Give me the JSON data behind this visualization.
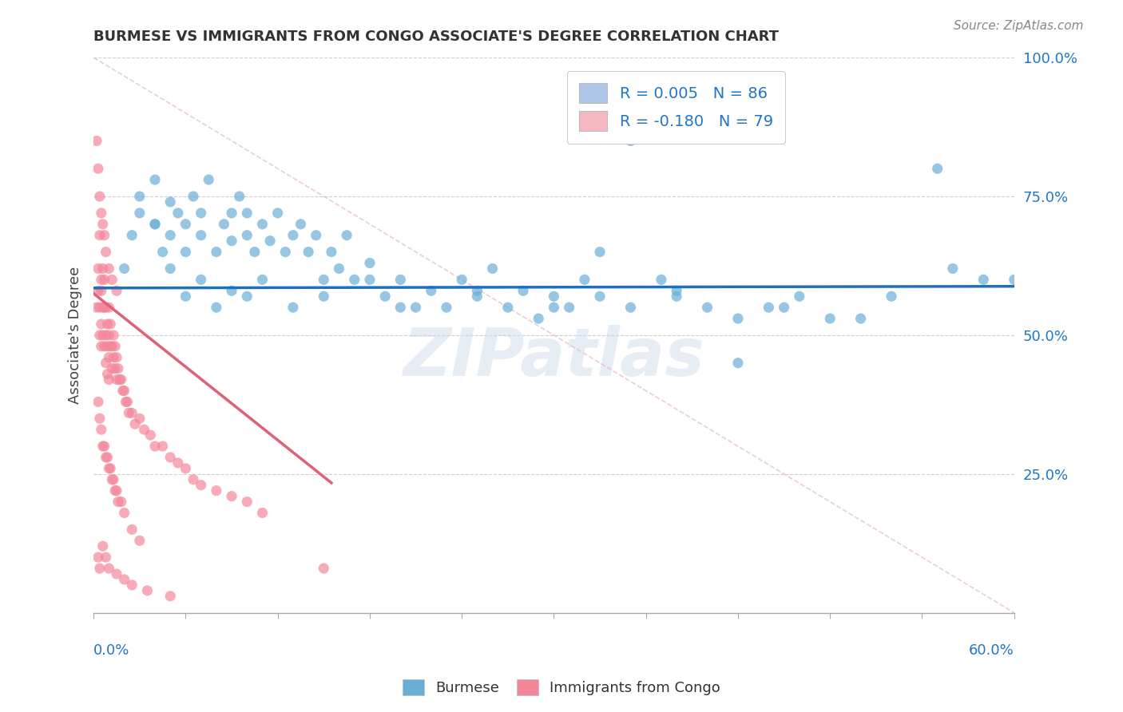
{
  "title": "BURMESE VS IMMIGRANTS FROM CONGO ASSOCIATE'S DEGREE CORRELATION CHART",
  "source": "Source: ZipAtlas.com",
  "ylabel": "Associate's Degree",
  "right_yticklabels": [
    "25.0%",
    "50.0%",
    "75.0%",
    "100.0%"
  ],
  "right_ytick_vals": [
    0.25,
    0.5,
    0.75,
    1.0
  ],
  "xlim": [
    0.0,
    0.6
  ],
  "ylim": [
    0.0,
    1.0
  ],
  "legend_r_labels": [
    "R = 0.005",
    "R = -0.180"
  ],
  "legend_n_labels": [
    "N = 86",
    "N = 79"
  ],
  "legend_patch_colors": [
    "#aec6e8",
    "#f4b8c1"
  ],
  "burmese_color": "#6aaed6",
  "congo_color": "#f4869a",
  "trendline_burmese_color": "#1f6fbf",
  "trendline_congo_color": "#e0607a",
  "trendline_dashed_color": "#e8c0c8",
  "grid_color": "#d0d0d0",
  "watermark": "ZIPatlas",
  "bottom_legend_labels": [
    "Burmese",
    "Immigrants from Congo"
  ],
  "burmese_x": [
    0.02,
    0.025,
    0.03,
    0.04,
    0.04,
    0.045,
    0.05,
    0.05,
    0.055,
    0.06,
    0.06,
    0.065,
    0.07,
    0.07,
    0.075,
    0.08,
    0.085,
    0.09,
    0.09,
    0.095,
    0.1,
    0.1,
    0.105,
    0.11,
    0.115,
    0.12,
    0.125,
    0.13,
    0.135,
    0.14,
    0.145,
    0.15,
    0.155,
    0.16,
    0.165,
    0.17,
    0.18,
    0.19,
    0.2,
    0.21,
    0.22,
    0.23,
    0.24,
    0.25,
    0.26,
    0.27,
    0.28,
    0.29,
    0.3,
    0.31,
    0.32,
    0.33,
    0.35,
    0.37,
    0.38,
    0.4,
    0.42,
    0.44,
    0.46,
    0.5,
    0.52,
    0.56,
    0.58,
    0.3,
    0.25,
    0.2,
    0.18,
    0.15,
    0.13,
    0.11,
    0.1,
    0.09,
    0.08,
    0.07,
    0.06,
    0.05,
    0.04,
    0.03,
    0.45,
    0.48,
    0.35,
    0.55,
    0.6,
    0.42,
    0.38,
    0.33
  ],
  "burmese_y": [
    0.62,
    0.68,
    0.72,
    0.7,
    0.78,
    0.65,
    0.68,
    0.74,
    0.72,
    0.65,
    0.7,
    0.75,
    0.68,
    0.72,
    0.78,
    0.65,
    0.7,
    0.72,
    0.67,
    0.75,
    0.68,
    0.72,
    0.65,
    0.7,
    0.67,
    0.72,
    0.65,
    0.68,
    0.7,
    0.65,
    0.68,
    0.6,
    0.65,
    0.62,
    0.68,
    0.6,
    0.63,
    0.57,
    0.6,
    0.55,
    0.58,
    0.55,
    0.6,
    0.57,
    0.62,
    0.55,
    0.58,
    0.53,
    0.57,
    0.55,
    0.6,
    0.57,
    0.55,
    0.6,
    0.57,
    0.55,
    0.53,
    0.55,
    0.57,
    0.53,
    0.57,
    0.62,
    0.6,
    0.55,
    0.58,
    0.55,
    0.6,
    0.57,
    0.55,
    0.6,
    0.57,
    0.58,
    0.55,
    0.6,
    0.57,
    0.62,
    0.7,
    0.75,
    0.55,
    0.53,
    0.85,
    0.8,
    0.6,
    0.45,
    0.58,
    0.65
  ],
  "congo_x": [
    0.002,
    0.003,
    0.003,
    0.004,
    0.004,
    0.004,
    0.005,
    0.005,
    0.005,
    0.005,
    0.006,
    0.006,
    0.006,
    0.007,
    0.007,
    0.007,
    0.008,
    0.008,
    0.008,
    0.009,
    0.009,
    0.009,
    0.01,
    0.01,
    0.01,
    0.01,
    0.011,
    0.011,
    0.012,
    0.012,
    0.013,
    0.013,
    0.014,
    0.014,
    0.015,
    0.015,
    0.016,
    0.017,
    0.018,
    0.019,
    0.02,
    0.021,
    0.022,
    0.023,
    0.025,
    0.027,
    0.03,
    0.033,
    0.037,
    0.04,
    0.045,
    0.05,
    0.055,
    0.06,
    0.065,
    0.07,
    0.08,
    0.09,
    0.1,
    0.11,
    0.003,
    0.004,
    0.005,
    0.006,
    0.007,
    0.008,
    0.009,
    0.01,
    0.011,
    0.012,
    0.013,
    0.014,
    0.015,
    0.016,
    0.018,
    0.02,
    0.025,
    0.03,
    0.15
  ],
  "congo_y": [
    0.55,
    0.62,
    0.58,
    0.68,
    0.55,
    0.5,
    0.6,
    0.58,
    0.52,
    0.48,
    0.62,
    0.55,
    0.5,
    0.6,
    0.55,
    0.48,
    0.55,
    0.5,
    0.45,
    0.52,
    0.48,
    0.43,
    0.55,
    0.5,
    0.46,
    0.42,
    0.52,
    0.48,
    0.48,
    0.44,
    0.5,
    0.46,
    0.48,
    0.44,
    0.46,
    0.42,
    0.44,
    0.42,
    0.42,
    0.4,
    0.4,
    0.38,
    0.38,
    0.36,
    0.36,
    0.34,
    0.35,
    0.33,
    0.32,
    0.3,
    0.3,
    0.28,
    0.27,
    0.26,
    0.24,
    0.23,
    0.22,
    0.21,
    0.2,
    0.18,
    0.38,
    0.35,
    0.33,
    0.3,
    0.3,
    0.28,
    0.28,
    0.26,
    0.26,
    0.24,
    0.24,
    0.22,
    0.22,
    0.2,
    0.2,
    0.18,
    0.15,
    0.13,
    0.08
  ],
  "congo_extra_x": [
    0.002,
    0.003,
    0.004,
    0.005,
    0.006,
    0.007,
    0.008,
    0.01,
    0.012,
    0.015,
    0.003,
    0.004,
    0.006,
    0.008,
    0.01,
    0.015,
    0.02,
    0.025,
    0.035,
    0.05
  ],
  "congo_extra_y": [
    0.85,
    0.8,
    0.75,
    0.72,
    0.7,
    0.68,
    0.65,
    0.62,
    0.6,
    0.58,
    0.1,
    0.08,
    0.12,
    0.1,
    0.08,
    0.07,
    0.06,
    0.05,
    0.04,
    0.03
  ],
  "trendline_burmese_y_intercept": 0.585,
  "trendline_burmese_slope": 0.005,
  "trendline_congo_y_intercept": 0.575,
  "trendline_congo_slope": -2.2,
  "trendline_congo_x_end": 0.155
}
